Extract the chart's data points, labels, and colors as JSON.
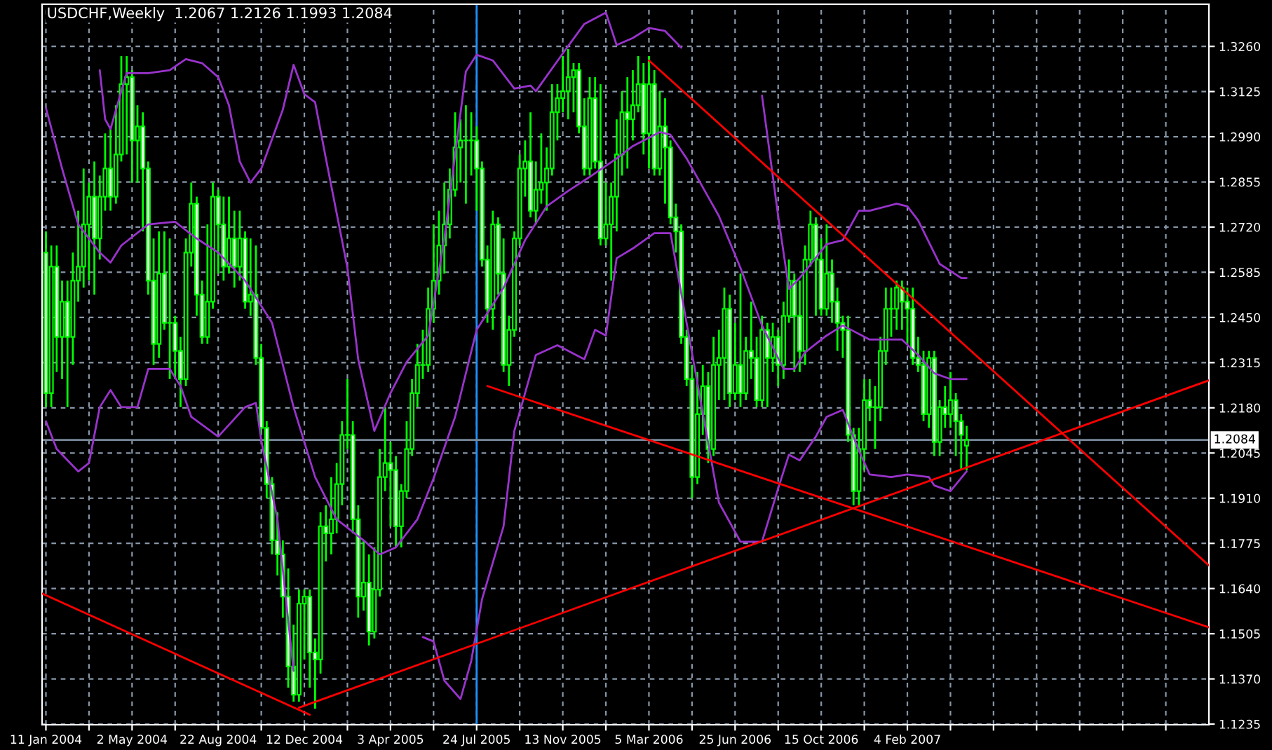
{
  "chart_data": {
    "type": "candlestick",
    "title": "USDCHF,Weekly  1.2067 1.2126 1.1993 1.2084",
    "xlim": [
      "2004-01-06",
      "2008-03-02"
    ],
    "ylim": [
      1.1233,
      1.3386
    ],
    "xticks": [
      {
        "value": "2004-01-11",
        "label": "11 Jan 2004"
      },
      {
        "value": "2004-03-07",
        "label": null
      },
      {
        "value": "2004-05-02",
        "label": "2 May 2004"
      },
      {
        "value": "2004-06-27",
        "label": null
      },
      {
        "value": "2004-08-22",
        "label": "22 Aug 2004"
      },
      {
        "value": "2004-10-17",
        "label": null
      },
      {
        "value": "2004-12-12",
        "label": "12 Dec 2004"
      },
      {
        "value": "2005-02-06",
        "label": null
      },
      {
        "value": "2005-04-03",
        "label": "3 Apr 2005"
      },
      {
        "value": "2005-05-29",
        "label": null
      },
      {
        "value": "2005-07-24",
        "label": "24 Jul 2005"
      },
      {
        "value": "2005-09-18",
        "label": null
      },
      {
        "value": "2005-11-13",
        "label": "13 Nov 2005"
      },
      {
        "value": "2006-01-08",
        "label": null
      },
      {
        "value": "2006-03-05",
        "label": "5 Mar 2006"
      },
      {
        "value": "2006-04-30",
        "label": null
      },
      {
        "value": "2006-06-25",
        "label": "25 Jun 2006"
      },
      {
        "value": "2006-08-20",
        "label": null
      },
      {
        "value": "2006-10-15",
        "label": "15 Oct 2006"
      },
      {
        "value": "2006-12-10",
        "label": null
      },
      {
        "value": "2007-02-04",
        "label": "4 Feb 2007"
      },
      {
        "value": "2007-04-01",
        "label": null
      },
      {
        "value": "2007-05-27",
        "label": null
      },
      {
        "value": "2007-07-22",
        "label": null
      },
      {
        "value": "2007-09-16",
        "label": null
      },
      {
        "value": "2007-11-11",
        "label": null
      },
      {
        "value": "2008-01-06",
        "label": null
      }
    ],
    "yticks": [
      1.1235,
      {
        "value": 1.137,
        "label": "1.1370"
      },
      1.1505,
      {
        "value": 1.164,
        "label": "1.1640"
      },
      1.1775,
      {
        "value": 1.191,
        "label": "1.1910"
      },
      1.2045,
      {
        "value": 1.218,
        "label": "1.2180"
      },
      1.2315,
      {
        "value": 1.245,
        "label": "1.2450"
      },
      1.2585,
      {
        "value": 1.272,
        "label": "1.2720"
      },
      1.2855,
      {
        "value": 1.299,
        "label": "1.2990"
      },
      1.3125,
      {
        "value": 1.326,
        "label": "1.3260"
      }
    ],
    "grid": true,
    "ref_lines": [
      {
        "axis": "x",
        "value": "2005-07-24",
        "color": "#1e90ff"
      },
      {
        "axis": "y",
        "value": 1.2084,
        "label": "1.2084",
        "color": "#778899"
      }
    ],
    "series": [
      {
        "type": "candlestick",
        "color": "#00ff00",
        "x": [
          "2004-01-11",
          "2004-01-18",
          "2004-01-25",
          "2004-02-01",
          "2004-02-08",
          "2004-02-15",
          "2004-02-22",
          "2004-02-29",
          "2004-03-07",
          "2004-03-14",
          "2004-03-21",
          "2004-03-28",
          "2004-04-04",
          "2004-04-11",
          "2004-04-18",
          "2004-04-25",
          "2004-05-02",
          "2004-05-09",
          "2004-05-16",
          "2004-05-23",
          "2004-05-30",
          "2004-06-06",
          "2004-06-13",
          "2004-06-20",
          "2004-06-27",
          "2004-07-04",
          "2004-07-11",
          "2004-07-18",
          "2004-07-25",
          "2004-08-01",
          "2004-08-08",
          "2004-08-15",
          "2004-08-22",
          "2004-08-29",
          "2004-09-05",
          "2004-09-12",
          "2004-09-19",
          "2004-09-26",
          "2004-10-03",
          "2004-10-10",
          "2004-10-17",
          "2004-10-24",
          "2004-10-31",
          "2004-11-07",
          "2004-11-14",
          "2004-11-21",
          "2004-11-28",
          "2004-12-05",
          "2004-12-12",
          "2004-12-19",
          "2004-12-26",
          "2005-01-02",
          "2005-01-09",
          "2005-01-16",
          "2005-01-23",
          "2005-01-30",
          "2005-02-06",
          "2005-02-13",
          "2005-02-20",
          "2005-02-27",
          "2005-03-06",
          "2005-03-13",
          "2005-03-20",
          "2005-03-27",
          "2005-04-03",
          "2005-04-10",
          "2005-04-17",
          "2005-04-24",
          "2005-05-01",
          "2005-05-08",
          "2005-05-15",
          "2005-05-22",
          "2005-05-29",
          "2005-06-05",
          "2005-06-12",
          "2005-06-19",
          "2005-06-26",
          "2005-07-03",
          "2005-07-10",
          "2005-07-17",
          "2005-07-24",
          "2005-07-31",
          "2005-08-07",
          "2005-08-14",
          "2005-08-21",
          "2005-08-28",
          "2005-09-04",
          "2005-09-11",
          "2005-09-18",
          "2005-09-25",
          "2005-10-02",
          "2005-10-09",
          "2005-10-16",
          "2005-10-23",
          "2005-10-30",
          "2005-11-06",
          "2005-11-13",
          "2005-11-20",
          "2005-11-27",
          "2005-12-04",
          "2005-12-11",
          "2005-12-18",
          "2005-12-25",
          "2006-01-01",
          "2006-01-08",
          "2006-01-15",
          "2006-01-22",
          "2006-01-29",
          "2006-02-05",
          "2006-02-12",
          "2006-02-19",
          "2006-02-26",
          "2006-03-05",
          "2006-03-12",
          "2006-03-19",
          "2006-03-26",
          "2006-04-02",
          "2006-04-09",
          "2006-04-16",
          "2006-04-23",
          "2006-04-30",
          "2006-05-07",
          "2006-05-14",
          "2006-05-21",
          "2006-05-28",
          "2006-06-04",
          "2006-06-11",
          "2006-06-18",
          "2006-06-25",
          "2006-07-02",
          "2006-07-09",
          "2006-07-16",
          "2006-07-23",
          "2006-07-30",
          "2006-08-06",
          "2006-08-13",
          "2006-08-20",
          "2006-08-27",
          "2006-09-03",
          "2006-09-10",
          "2006-09-17",
          "2006-09-24",
          "2006-10-01",
          "2006-10-08",
          "2006-10-15",
          "2006-10-22",
          "2006-10-29",
          "2006-11-05",
          "2006-11-12",
          "2006-11-19",
          "2006-11-26",
          "2006-12-03",
          "2006-12-10",
          "2006-12-17",
          "2006-12-24",
          "2006-12-31",
          "2007-01-07",
          "2007-01-14",
          "2007-01-21",
          "2007-01-28",
          "2007-02-04",
          "2007-02-11",
          "2007-02-18",
          "2007-02-25",
          "2007-03-04",
          "2007-03-11",
          "2007-03-18",
          "2007-03-25",
          "2007-04-01",
          "2007-04-08",
          "2007-04-15",
          "2007-04-22"
        ],
        "ohlc": [
          [
            1.2644,
            1.2707,
            1.2182,
            1.2224
          ],
          [
            1.2224,
            1.2665,
            1.2182,
            1.2602
          ],
          [
            1.2602,
            1.2665,
            1.2287,
            1.2392
          ],
          [
            1.2392,
            1.256,
            1.2266,
            1.2497
          ],
          [
            1.2497,
            1.256,
            1.2182,
            1.2392
          ],
          [
            1.2392,
            1.2644,
            1.2308,
            1.256
          ],
          [
            1.256,
            1.2769,
            1.2497,
            1.2602
          ],
          [
            1.2602,
            1.2895,
            1.2539,
            1.2728
          ],
          [
            1.2728,
            1.2853,
            1.256,
            1.2811
          ],
          [
            1.2811,
            1.2916,
            1.2518,
            1.2686
          ],
          [
            1.2686,
            1.2874,
            1.2623,
            1.2811
          ],
          [
            1.2811,
            1.3,
            1.2769,
            1.2895
          ],
          [
            1.2895,
            1.3021,
            1.2769,
            1.2811
          ],
          [
            1.2811,
            1.3084,
            1.279,
            1.2937
          ],
          [
            1.2937,
            1.3231,
            1.2916,
            1.3147
          ],
          [
            1.3147,
            1.3231,
            1.2937,
            1.3168
          ],
          [
            1.3168,
            1.3189,
            1.2853,
            1.2979
          ],
          [
            1.2979,
            1.3084,
            1.2853,
            1.3021
          ],
          [
            1.3021,
            1.3063,
            1.2707,
            1.2895
          ],
          [
            1.2895,
            1.2916,
            1.2518,
            1.256
          ],
          [
            1.256,
            1.2686,
            1.2308,
            1.2371
          ],
          [
            1.2371,
            1.2707,
            1.2329,
            1.2581
          ],
          [
            1.2581,
            1.2707,
            1.2413,
            1.2434
          ],
          [
            1.2434,
            1.2686,
            1.2266,
            1.2434
          ],
          [
            1.2434,
            1.2455,
            1.2266,
            1.235
          ],
          [
            1.235,
            1.2392,
            1.2182,
            1.2266
          ],
          [
            1.2266,
            1.2686,
            1.2245,
            1.2644
          ],
          [
            1.2644,
            1.2853,
            1.2602,
            1.279
          ],
          [
            1.279,
            1.2811,
            1.2455,
            1.2518
          ],
          [
            1.2518,
            1.256,
            1.2371,
            1.2392
          ],
          [
            1.2392,
            1.2728,
            1.2371,
            1.2497
          ],
          [
            1.2497,
            1.2853,
            1.2476,
            1.2811
          ],
          [
            1.2811,
            1.2832,
            1.2581,
            1.2728
          ],
          [
            1.2728,
            1.2811,
            1.256,
            1.2602
          ],
          [
            1.2602,
            1.2811,
            1.2581,
            1.2686
          ],
          [
            1.2686,
            1.2769,
            1.2539,
            1.2602
          ],
          [
            1.2602,
            1.2769,
            1.256,
            1.2686
          ],
          [
            1.2686,
            1.2707,
            1.2476,
            1.2497
          ],
          [
            1.2497,
            1.2686,
            1.2455,
            1.2518
          ],
          [
            1.2518,
            1.2665,
            1.2308,
            1.2329
          ],
          [
            1.2329,
            1.2371,
            1.2099,
            1.212
          ],
          [
            1.212,
            1.214,
            1.191,
            1.1952
          ],
          [
            1.1952,
            1.1973,
            1.1742,
            1.1784
          ],
          [
            1.1784,
            1.1868,
            1.1679,
            1.1742
          ],
          [
            1.1742,
            1.1784,
            1.1553,
            1.1616
          ],
          [
            1.1616,
            1.17,
            1.1344,
            1.1407
          ],
          [
            1.1407,
            1.1532,
            1.1302,
            1.1323
          ],
          [
            1.1323,
            1.1637,
            1.1302,
            1.1595
          ],
          [
            1.1595,
            1.1637,
            1.1428,
            1.1616
          ],
          [
            1.1616,
            1.1637,
            1.1344,
            1.1449
          ],
          [
            1.1449,
            1.1491,
            1.1281,
            1.1428
          ],
          [
            1.1428,
            1.1868,
            1.1386,
            1.1826
          ],
          [
            1.1826,
            1.1889,
            1.1721,
            1.1805
          ],
          [
            1.1805,
            1.1973,
            1.1742,
            1.1847
          ],
          [
            1.1847,
            1.2015,
            1.1805,
            1.1952
          ],
          [
            1.1952,
            1.214,
            1.1889,
            1.2099
          ],
          [
            1.2099,
            1.2266,
            1.2057,
            1.2099
          ],
          [
            1.2099,
            1.214,
            1.1805,
            1.1847
          ],
          [
            1.1847,
            1.1889,
            1.1553,
            1.1616
          ],
          [
            1.1616,
            1.1784,
            1.1574,
            1.1658
          ],
          [
            1.1658,
            1.1742,
            1.147,
            1.1511
          ],
          [
            1.1511,
            1.1763,
            1.1491,
            1.1637
          ],
          [
            1.1637,
            1.2057,
            1.1616,
            1.1973
          ],
          [
            1.1973,
            1.2182,
            1.1931,
            1.2015
          ],
          [
            1.2015,
            1.2078,
            1.1826,
            1.1994
          ],
          [
            1.1994,
            1.2036,
            1.1763,
            1.1826
          ],
          [
            1.1826,
            1.1952,
            1.1763,
            1.1931
          ],
          [
            1.1931,
            1.214,
            1.191,
            1.2057
          ],
          [
            1.2057,
            1.2266,
            1.2036,
            1.2224
          ],
          [
            1.2224,
            1.2371,
            1.2182,
            1.2308
          ],
          [
            1.2308,
            1.2413,
            1.2266,
            1.2308
          ],
          [
            1.2308,
            1.2539,
            1.2287,
            1.2476
          ],
          [
            1.2476,
            1.2728,
            1.2434,
            1.256
          ],
          [
            1.256,
            1.2769,
            1.2518,
            1.2665
          ],
          [
            1.2665,
            1.2853,
            1.2581,
            1.2728
          ],
          [
            1.2728,
            1.2895,
            1.2686,
            1.2832
          ],
          [
            1.2832,
            1.3063,
            1.2811,
            1.2958
          ],
          [
            1.2958,
            1.3042,
            1.2853,
            1.2979
          ],
          [
            1.2979,
            1.3084,
            1.279,
            1.2979
          ],
          [
            1.2979,
            1.3063,
            1.2874,
            1.2979
          ],
          [
            1.2979,
            1.3021,
            1.2769,
            1.2895
          ],
          [
            1.2895,
            1.2916,
            1.2602,
            1.2623
          ],
          [
            1.2623,
            1.2665,
            1.2434,
            1.2476
          ],
          [
            1.2476,
            1.2769,
            1.2413,
            1.2728
          ],
          [
            1.2728,
            1.2749,
            1.2518,
            1.2581
          ],
          [
            1.2581,
            1.2686,
            1.2287,
            1.2308
          ],
          [
            1.2308,
            1.2455,
            1.2245,
            1.2413
          ],
          [
            1.2413,
            1.2707,
            1.2392,
            1.2686
          ],
          [
            1.2686,
            1.2937,
            1.2665,
            1.2895
          ],
          [
            1.2895,
            1.2979,
            1.2811,
            1.2916
          ],
          [
            1.2916,
            1.3063,
            1.2749,
            1.2769
          ],
          [
            1.2769,
            1.2916,
            1.2728,
            1.2832
          ],
          [
            1.2832,
            1.3,
            1.279,
            1.2853
          ],
          [
            1.2853,
            1.2958,
            1.2769,
            1.2895
          ],
          [
            1.2895,
            1.3147,
            1.2874,
            1.3063
          ],
          [
            1.3063,
            1.3147,
            1.2979,
            1.3105
          ],
          [
            1.3105,
            1.3231,
            1.3063,
            1.3126
          ],
          [
            1.3126,
            1.3252,
            1.3042,
            1.3168
          ],
          [
            1.3168,
            1.321,
            1.3063,
            1.3189
          ],
          [
            1.3189,
            1.321,
            1.3,
            1.3021
          ],
          [
            1.3021,
            1.3105,
            1.2874,
            1.2895
          ],
          [
            1.2895,
            1.3168,
            1.2874,
            1.3105
          ],
          [
            1.3105,
            1.3168,
            1.2895,
            1.2916
          ],
          [
            1.2916,
            1.3147,
            1.2665,
            1.2686
          ],
          [
            1.2686,
            1.2853,
            1.2665,
            1.2728
          ],
          [
            1.2728,
            1.2853,
            1.256,
            1.2811
          ],
          [
            1.2811,
            1.3042,
            1.2707,
            1.2937
          ],
          [
            1.2937,
            1.3126,
            1.2874,
            1.3063
          ],
          [
            1.3063,
            1.3168,
            1.2895,
            1.3042
          ],
          [
            1.3042,
            1.3189,
            1.2979,
            1.3084
          ],
          [
            1.3084,
            1.3231,
            1.3063,
            1.3147
          ],
          [
            1.3147,
            1.321,
            1.2937,
            1.3
          ],
          [
            1.3,
            1.3231,
            1.2895,
            1.3147
          ],
          [
            1.3147,
            1.3189,
            1.2874,
            1.2895
          ],
          [
            1.2895,
            1.3126,
            1.2874,
            1.3021
          ],
          [
            1.3021,
            1.3105,
            1.279,
            1.2958
          ],
          [
            1.2958,
            1.2979,
            1.2728,
            1.2749
          ],
          [
            1.2749,
            1.279,
            1.2644,
            1.2707
          ],
          [
            1.2707,
            1.2728,
            1.2371,
            1.2392
          ],
          [
            1.2392,
            1.2413,
            1.2245,
            1.2266
          ],
          [
            1.2266,
            1.2308,
            1.191,
            1.1973
          ],
          [
            1.1973,
            1.2287,
            1.1952,
            1.2161
          ],
          [
            1.2161,
            1.2308,
            1.2099,
            1.2245
          ],
          [
            1.2245,
            1.2287,
            1.2015,
            1.2057
          ],
          [
            1.2057,
            1.2392,
            1.2036,
            1.2308
          ],
          [
            1.2308,
            1.2413,
            1.2203,
            1.2329
          ],
          [
            1.2329,
            1.2539,
            1.2203,
            1.2476
          ],
          [
            1.2476,
            1.2518,
            1.2182,
            1.2224
          ],
          [
            1.2224,
            1.2434,
            1.2203,
            1.2308
          ],
          [
            1.2308,
            1.2581,
            1.2182,
            1.2224
          ],
          [
            1.2224,
            1.2392,
            1.2203,
            1.235
          ],
          [
            1.235,
            1.2497,
            1.2266,
            1.2329
          ],
          [
            1.2329,
            1.2392,
            1.2182,
            1.2203
          ],
          [
            1.2203,
            1.2455,
            1.2182,
            1.2413
          ],
          [
            1.2413,
            1.2434,
            1.2182,
            1.2329
          ],
          [
            1.2329,
            1.2434,
            1.2287,
            1.2392
          ],
          [
            1.2392,
            1.2413,
            1.2245,
            1.2308
          ],
          [
            1.2308,
            1.2497,
            1.2266,
            1.2455
          ],
          [
            1.2455,
            1.2623,
            1.2434,
            1.256
          ],
          [
            1.256,
            1.2581,
            1.2287,
            1.2455
          ],
          [
            1.2455,
            1.256,
            1.2287,
            1.235
          ],
          [
            1.235,
            1.2665,
            1.2308,
            1.2623
          ],
          [
            1.2623,
            1.2769,
            1.2602,
            1.2728
          ],
          [
            1.2728,
            1.2749,
            1.2455,
            1.2623
          ],
          [
            1.2623,
            1.2686,
            1.2455,
            1.2476
          ],
          [
            1.2476,
            1.2728,
            1.2455,
            1.2581
          ],
          [
            1.2581,
            1.2623,
            1.2434,
            1.2497
          ],
          [
            1.2497,
            1.2539,
            1.235,
            1.2434
          ],
          [
            1.2434,
            1.2455,
            1.2329,
            1.2413
          ],
          [
            1.2413,
            1.2455,
            1.2078,
            1.2099
          ],
          [
            1.2099,
            1.212,
            1.1889,
            1.1931
          ],
          [
            1.1931,
            1.212,
            1.1889,
            1.2057
          ],
          [
            1.2057,
            1.2266,
            1.1994,
            1.2203
          ],
          [
            1.2203,
            1.2266,
            1.214,
            1.2182
          ],
          [
            1.2182,
            1.2245,
            1.2057,
            1.2182
          ],
          [
            1.2182,
            1.2392,
            1.214,
            1.235
          ],
          [
            1.235,
            1.2539,
            1.2308,
            1.2476
          ],
          [
            1.2476,
            1.2539,
            1.2392,
            1.2476
          ],
          [
            1.2476,
            1.256,
            1.2413,
            1.2539
          ],
          [
            1.2539,
            1.256,
            1.2413,
            1.2497
          ],
          [
            1.2497,
            1.2539,
            1.2371,
            1.2476
          ],
          [
            1.2476,
            1.2539,
            1.2308,
            1.2329
          ],
          [
            1.2329,
            1.2392,
            1.2287,
            1.2308
          ],
          [
            1.2308,
            1.235,
            1.214,
            1.2161
          ],
          [
            1.2161,
            1.235,
            1.212,
            1.2329
          ],
          [
            1.2329,
            1.235,
            1.2036,
            1.2078
          ],
          [
            1.2078,
            1.2203,
            1.2036,
            1.2182
          ],
          [
            1.2182,
            1.2245,
            1.212,
            1.2161
          ],
          [
            1.2161,
            1.2287,
            1.212,
            1.2203
          ],
          [
            1.2203,
            1.2224,
            1.2036,
            1.214
          ],
          [
            1.214,
            1.2161,
            1.1994,
            1.2099
          ],
          [
            1.2067,
            1.2126,
            1.1993,
            1.2084
          ]
        ]
      },
      {
        "type": "line",
        "color": "#9933cc",
        "x": [
          "2004-03-21",
          "2004-03-28",
          "2004-04-04",
          "2004-04-18",
          "2004-04-25",
          "2004-05-23",
          "2004-06-20",
          "2004-07-11",
          "2004-08-01",
          "2004-08-22",
          "2004-09-05",
          "2004-09-19",
          "2004-10-03",
          "2004-10-17",
          "2004-11-14",
          "2004-11-28",
          "2004-12-12",
          "2004-12-26",
          "2005-01-09",
          "2005-02-06",
          "2005-02-20",
          "2005-03-13",
          "2005-04-03",
          "2005-04-24",
          "2005-05-22",
          "2005-06-12",
          "2005-07-10",
          "2005-07-24",
          "2005-08-14",
          "2005-09-11",
          "2005-10-02",
          "2005-10-09",
          "2005-11-13",
          "2005-12-11",
          "2006-01-08",
          "2006-01-22",
          "2006-02-12",
          "2006-03-05",
          "2006-03-26",
          "2006-04-16",
          "2006-06-04",
          "2006-07-30",
          "2006-08-20",
          "2006-09-03",
          "2006-09-17",
          "2006-10-22",
          "2006-11-12",
          "2006-12-03",
          "2006-12-17",
          "2007-01-21",
          "2007-02-04",
          "2007-02-18",
          "2007-03-18",
          "2007-04-15",
          "2007-04-22"
        ],
        "values": [
          1.3189,
          1.3042,
          1.3013,
          1.3126,
          1.318,
          1.318,
          1.3189,
          1.3222,
          1.321,
          1.3168,
          1.3084,
          1.2916,
          1.2853,
          1.2895,
          1.3071,
          1.3205,
          1.3117,
          1.3093,
          1.2925,
          1.2598,
          1.2325,
          1.2111,
          1.2224,
          1.2317,
          1.2396,
          1.2686,
          1.3185,
          1.3235,
          1.3218,
          1.3134,
          1.3143,
          1.3126,
          1.3239,
          1.3327,
          1.3361,
          1.3264,
          1.3285,
          1.3315,
          1.3306,
          1.3256,
          null,
          1.3113,
          1.2753,
          1.2535,
          1.2568,
          1.2669,
          1.2681,
          1.2769,
          1.2769,
          1.279,
          1.2782,
          1.274,
          1.261,
          1.2568,
          1.2568
        ]
      },
      {
        "type": "line",
        "color": "#9933cc",
        "x": [
          "2004-01-11",
          "2004-02-01",
          "2004-02-22",
          "2004-03-21",
          "2004-04-04",
          "2004-04-18",
          "2004-05-23",
          "2004-06-27",
          "2004-07-25",
          "2004-08-22",
          "2004-09-26",
          "2004-10-31",
          "2004-11-28",
          "2004-12-26",
          "2005-01-23",
          "2005-02-27",
          "2005-03-20",
          "2005-04-10",
          "2005-05-08",
          "2005-05-29",
          "2005-06-26",
          "2005-07-24",
          "2005-08-28",
          "2005-09-25",
          "2005-10-23",
          "2005-11-20",
          "2005-12-18",
          "2006-01-22",
          "2006-02-12",
          "2006-03-19",
          "2006-04-02",
          "2006-04-23",
          "2006-06-04",
          "2006-07-02",
          "2006-07-30",
          "2006-08-27",
          "2006-09-10",
          "2006-09-24",
          "2006-10-22",
          "2006-11-12",
          "2006-12-17",
          "2007-01-28",
          "2007-02-18",
          "2007-03-11",
          "2007-04-01",
          "2007-04-22"
        ],
        "values": [
          1.3076,
          1.2895,
          1.2728,
          1.2644,
          1.2614,
          1.2665,
          1.2728,
          1.2736,
          1.2686,
          1.2644,
          1.256,
          1.2434,
          1.2182,
          1.1973,
          1.1847,
          1.1784,
          1.1742,
          1.1763,
          1.1847,
          1.1969,
          1.2153,
          1.2413,
          1.2539,
          1.2681,
          1.2782,
          1.2828,
          1.287,
          1.2925,
          1.2962,
          1.3004,
          1.2996,
          1.2925,
          1.2753,
          1.2598,
          1.2426,
          1.2296,
          1.2296,
          1.2346,
          1.2396,
          1.2426,
          1.2384,
          1.2384,
          1.2338,
          1.2283,
          1.2266,
          1.2266
        ]
      },
      {
        "type": "line",
        "color": "#9933cc",
        "x": [
          "2004-01-11",
          "2004-01-25",
          "2004-02-22",
          "2004-03-07",
          "2004-03-21",
          "2004-04-04",
          "2004-04-18",
          "2004-05-09",
          "2004-05-23",
          "2004-06-20",
          "2004-07-04",
          "2004-07-18",
          "2004-08-22",
          "2004-09-26",
          "2004-10-10",
          "2004-10-17",
          "2004-11-07",
          "2004-11-28",
          "2005-01-23",
          "2005-05-15",
          "2005-05-29",
          "2005-06-12",
          "2005-07-03",
          "2005-07-17",
          "2005-07-31",
          "2005-08-28",
          "2005-09-11",
          "2005-10-09",
          "2005-11-06",
          "2005-12-11",
          "2005-12-25",
          "2006-01-08",
          "2006-01-22",
          "2006-02-12",
          "2006-03-12",
          "2006-04-02",
          "2006-05-07",
          "2006-06-04",
          "2006-07-02",
          "2006-07-30",
          "2006-08-20",
          "2006-09-03",
          "2006-09-17",
          "2006-10-08",
          "2006-10-22",
          "2006-11-12",
          "2006-12-03",
          "2006-12-17",
          "2007-01-14",
          "2007-02-04",
          "2007-03-04",
          "2007-03-11",
          "2007-04-01",
          "2007-04-22"
        ],
        "values": [
          1.214,
          1.2057,
          1.199,
          1.2015,
          1.2182,
          1.2233,
          1.2182,
          1.2182,
          1.2296,
          1.2296,
          1.2245,
          1.2153,
          1.2094,
          1.2182,
          1.2195,
          1.2082,
          1.1847,
          1.1394,
          null,
          1.1495,
          1.1482,
          1.1365,
          1.131,
          1.1424,
          1.1608,
          1.1826,
          1.2111,
          1.2338,
          1.2367,
          1.2325,
          1.2413,
          1.2396,
          1.2627,
          1.2656,
          1.2702,
          1.2702,
          1.2254,
          1.1897,
          1.178,
          1.178,
          1.1939,
          1.204,
          1.2023,
          1.2094,
          1.2153,
          1.2174,
          1.2052,
          1.1981,
          1.1973,
          1.1981,
          1.1973,
          1.1948,
          1.1931,
          1.199
        ]
      },
      {
        "type": "line",
        "color": "#ff0000",
        "x": [
          "2004-01-06",
          "2004-12-19"
        ],
        "values": [
          1.1625,
          1.1263
        ]
      },
      {
        "type": "line",
        "color": "#ff0000",
        "x": [
          "2004-12-05",
          "2008-03-02"
        ],
        "values": [
          1.1284,
          1.2262
        ]
      },
      {
        "type": "line",
        "color": "#ff0000",
        "x": [
          "2005-08-07",
          "2008-03-02"
        ],
        "values": [
          1.2245,
          1.1524
        ]
      },
      {
        "type": "line",
        "color": "#ff0000",
        "x": [
          "2006-03-05",
          "2008-03-02"
        ],
        "values": [
          1.3218,
          1.1709
        ]
      }
    ]
  }
}
